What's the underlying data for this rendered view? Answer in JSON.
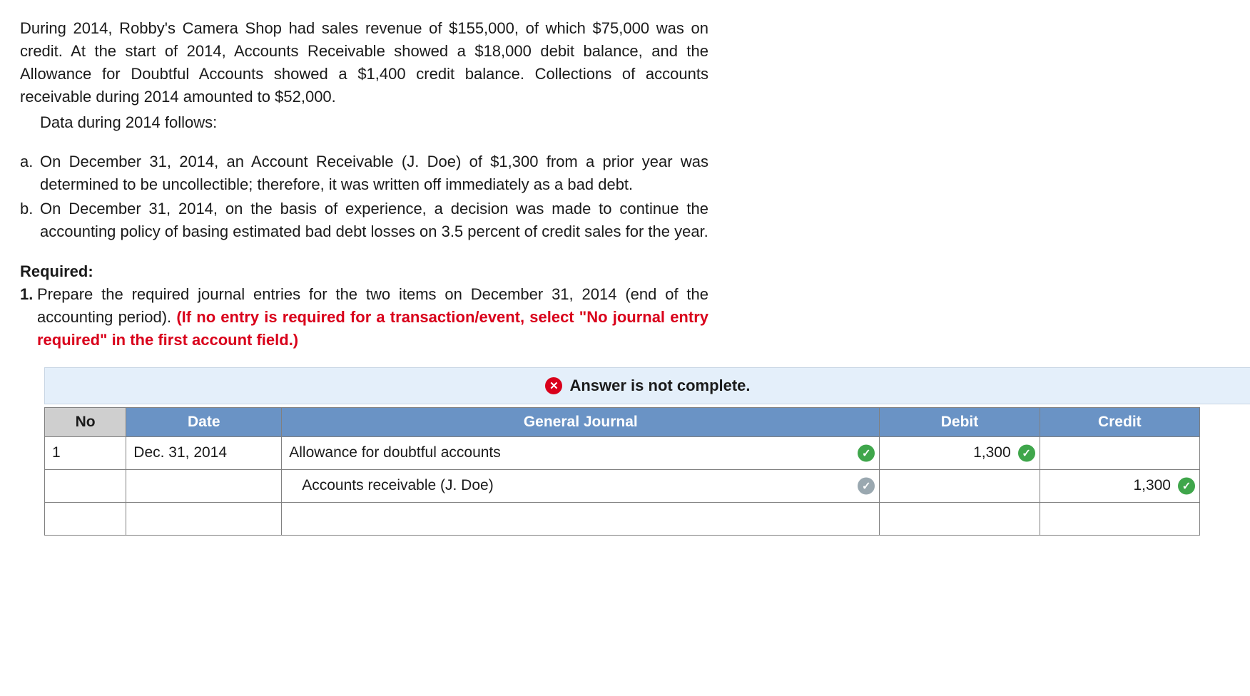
{
  "question": {
    "intro": "During 2014, Robby's Camera Shop had sales revenue of $155,000, of which $75,000 was on credit. At the start of 2014, Accounts Receivable showed a $18,000 debit balance, and the Allowance for Doubtful Accounts showed a $1,400 credit balance. Collections of accounts receivable during 2014 amounted to $52,000.",
    "data_line": "Data during 2014 follows:",
    "items": [
      {
        "marker": "a.",
        "text": "On December 31, 2014, an Account Receivable (J. Doe) of $1,300 from a prior year was determined to be uncollectible; therefore, it was written off immediately as a bad debt."
      },
      {
        "marker": "b.",
        "text": "On December 31, 2014, on the basis of experience, a decision was made to continue the accounting policy of basing estimated bad debt losses on 3.5 percent of credit sales for the year."
      }
    ],
    "required_heading": "Required:",
    "required_marker": "1.",
    "required_text_plain": "Prepare the required journal entries for the two items on December 31, 2014 (end of the accounting period). ",
    "required_text_red": "(If no entry is required for a transaction/event, select \"No journal entry required\" in the first account field.)"
  },
  "banner": {
    "icon_text": "✕",
    "text": "Answer is not complete.",
    "icon_bg": "#d9001b"
  },
  "table": {
    "headers": {
      "no": "No",
      "date": "Date",
      "gj": "General Journal",
      "debit": "Debit",
      "credit": "Credit"
    },
    "header_bg": "#6a93c5",
    "header_fg": "#ffffff",
    "no_header_bg": "#cfcfcf",
    "border_color": "#808080",
    "rows": [
      {
        "no": "1",
        "date": "Dec. 31, 2014",
        "account": "Allowance for doubtful accounts",
        "account_indent": false,
        "account_check": "green",
        "debit": "1,300",
        "debit_check": "green",
        "credit": "",
        "credit_check": null
      },
      {
        "no": "",
        "date": "",
        "account": "Accounts receivable (J. Doe)",
        "account_indent": true,
        "account_check": "gray",
        "debit": "",
        "debit_check": null,
        "credit": "1,300",
        "credit_check": "green"
      },
      {
        "no": "",
        "date": "",
        "account": "",
        "account_indent": false,
        "account_check": null,
        "debit": "",
        "debit_check": null,
        "credit": "",
        "credit_check": null
      }
    ]
  },
  "icons": {
    "check": "✓",
    "cross": "✕"
  }
}
